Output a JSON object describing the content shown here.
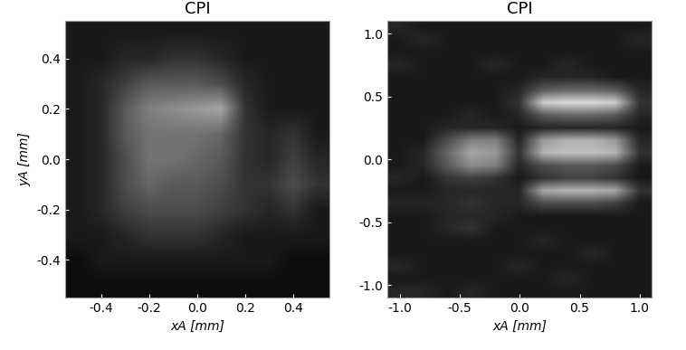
{
  "chart_data": [
    {
      "type": "heatmap",
      "title": "CPI",
      "x_label": "xA [mm]",
      "y_label": "yA [mm]",
      "xlim": [
        -0.55,
        0.55
      ],
      "ylim": [
        -0.55,
        0.55
      ],
      "xticks": [
        {
          "value": -0.4,
          "label": "-0.4"
        },
        {
          "value": -0.2,
          "label": "-0.2"
        },
        {
          "value": 0.0,
          "label": "0.0"
        },
        {
          "value": 0.2,
          "label": "0.2"
        },
        {
          "value": 0.4,
          "label": "0.4"
        }
      ],
      "yticks": [
        {
          "value": -0.4,
          "label": "-0.4"
        },
        {
          "value": -0.2,
          "label": "-0.2"
        },
        {
          "value": 0.0,
          "label": "0.0"
        },
        {
          "value": 0.2,
          "label": "0.2"
        },
        {
          "value": 0.4,
          "label": "0.4"
        }
      ],
      "color": "gray",
      "cell_range": [
        0,
        1
      ],
      "cells": [
        [
          0.1,
          0.1,
          0.1,
          0.1,
          0.1,
          0.1,
          0.1,
          0.1,
          0.1,
          0.1,
          0.1
        ],
        [
          0.1,
          0.1,
          0.15,
          0.15,
          0.2,
          0.2,
          0.15,
          0.1,
          0.1,
          0.1,
          0.1
        ],
        [
          0.1,
          0.15,
          0.25,
          0.35,
          0.35,
          0.35,
          0.3,
          0.15,
          0.1,
          0.1,
          0.1
        ],
        [
          0.1,
          0.15,
          0.35,
          0.5,
          0.55,
          0.6,
          0.65,
          0.2,
          0.1,
          0.1,
          0.1
        ],
        [
          0.1,
          0.15,
          0.35,
          0.45,
          0.45,
          0.45,
          0.4,
          0.2,
          0.15,
          0.2,
          0.1
        ],
        [
          0.1,
          0.15,
          0.3,
          0.45,
          0.45,
          0.4,
          0.35,
          0.2,
          0.15,
          0.25,
          0.15
        ],
        [
          0.1,
          0.15,
          0.3,
          0.4,
          0.35,
          0.35,
          0.3,
          0.2,
          0.2,
          0.3,
          0.2
        ],
        [
          0.1,
          0.15,
          0.25,
          0.3,
          0.3,
          0.3,
          0.25,
          0.2,
          0.15,
          0.2,
          0.1
        ],
        [
          0.1,
          0.1,
          0.15,
          0.2,
          0.2,
          0.2,
          0.15,
          0.1,
          0.1,
          0.1,
          0.1
        ],
        [
          0.05,
          0.1,
          0.1,
          0.1,
          0.1,
          0.1,
          0.1,
          0.1,
          0.1,
          0.05,
          0.05
        ],
        [
          0.05,
          0.05,
          0.05,
          0.05,
          0.05,
          0.05,
          0.05,
          0.05,
          0.05,
          0.05,
          0.05
        ]
      ]
    },
    {
      "type": "heatmap",
      "title": "CPI",
      "x_label": "xA [mm]",
      "xlim": [
        -1.1,
        1.1
      ],
      "ylim": [
        -1.1,
        1.1
      ],
      "xticks": [
        {
          "value": -1.0,
          "label": "-1.0"
        },
        {
          "value": -0.5,
          "label": "-0.5"
        },
        {
          "value": 0.0,
          "label": "0.0"
        },
        {
          "value": 0.5,
          "label": "0.5"
        },
        {
          "value": 1.0,
          "label": "1.0"
        }
      ],
      "yticks": [
        {
          "value": -1.0,
          "label": "-1.0"
        },
        {
          "value": -0.5,
          "label": "-0.5"
        },
        {
          "value": 0.0,
          "label": "0.0"
        },
        {
          "value": 0.5,
          "label": "0.5"
        },
        {
          "value": 1.0,
          "label": "1.0"
        }
      ],
      "color": "gray",
      "cell_range": [
        0,
        1
      ],
      "cells": [
        [
          0.15,
          0.1,
          0.1,
          0.1,
          0.1,
          0.1,
          0.1,
          0.1,
          0.1,
          0.1,
          0.1
        ],
        [
          0.1,
          0.15,
          0.1,
          0.1,
          0.1,
          0.1,
          0.1,
          0.1,
          0.1,
          0.1,
          0.15
        ],
        [
          0.1,
          0.1,
          0.1,
          0.1,
          0.1,
          0.1,
          0.1,
          0.1,
          0.1,
          0.1,
          0.1
        ],
        [
          0.15,
          0.1,
          0.1,
          0.1,
          0.15,
          0.1,
          0.1,
          0.15,
          0.1,
          0.1,
          0.1
        ],
        [
          0.1,
          0.1,
          0.1,
          0.1,
          0.1,
          0.1,
          0.15,
          0.15,
          0.15,
          0.1,
          0.1
        ],
        [
          0.1,
          0.1,
          0.1,
          0.1,
          0.1,
          0.15,
          0.35,
          0.4,
          0.4,
          0.35,
          0.15
        ],
        [
          0.1,
          0.1,
          0.1,
          0.1,
          0.1,
          0.2,
          0.8,
          0.85,
          0.85,
          0.8,
          0.2
        ],
        [
          0.1,
          0.1,
          0.1,
          0.15,
          0.1,
          0.15,
          0.35,
          0.4,
          0.4,
          0.35,
          0.15
        ],
        [
          0.1,
          0.1,
          0.15,
          0.15,
          0.15,
          0.1,
          0.15,
          0.15,
          0.15,
          0.15,
          0.1
        ],
        [
          0.1,
          0.1,
          0.3,
          0.5,
          0.5,
          0.15,
          0.6,
          0.7,
          0.7,
          0.6,
          0.15
        ],
        [
          0.1,
          0.15,
          0.4,
          0.65,
          0.6,
          0.2,
          0.7,
          0.75,
          0.75,
          0.7,
          0.2
        ],
        [
          0.1,
          0.15,
          0.35,
          0.55,
          0.5,
          0.15,
          0.3,
          0.35,
          0.35,
          0.3,
          0.1
        ],
        [
          0.15,
          0.1,
          0.2,
          0.25,
          0.2,
          0.1,
          0.2,
          0.25,
          0.25,
          0.2,
          0.1
        ],
        [
          0.1,
          0.1,
          0.15,
          0.15,
          0.15,
          0.15,
          0.65,
          0.7,
          0.7,
          0.65,
          0.2
        ],
        [
          0.15,
          0.15,
          0.15,
          0.2,
          0.15,
          0.15,
          0.3,
          0.3,
          0.3,
          0.25,
          0.1
        ],
        [
          0.1,
          0.1,
          0.15,
          0.15,
          0.15,
          0.1,
          0.1,
          0.1,
          0.1,
          0.1,
          0.1
        ],
        [
          0.1,
          0.1,
          0.15,
          0.2,
          0.1,
          0.1,
          0.1,
          0.1,
          0.1,
          0.1,
          0.1
        ],
        [
          0.1,
          0.1,
          0.1,
          0.1,
          0.1,
          0.1,
          0.15,
          0.1,
          0.1,
          0.1,
          0.1
        ],
        [
          0.1,
          0.1,
          0.1,
          0.1,
          0.1,
          0.1,
          0.1,
          0.1,
          0.15,
          0.1,
          0.1
        ],
        [
          0.15,
          0.1,
          0.1,
          0.1,
          0.1,
          0.15,
          0.1,
          0.1,
          0.1,
          0.1,
          0.1
        ],
        [
          0.1,
          0.1,
          0.1,
          0.1,
          0.1,
          0.1,
          0.1,
          0.15,
          0.1,
          0.1,
          0.1
        ],
        [
          0.15,
          0.15,
          0.1,
          0.15,
          0.1,
          0.1,
          0.1,
          0.1,
          0.1,
          0.1,
          0.1
        ]
      ]
    }
  ]
}
